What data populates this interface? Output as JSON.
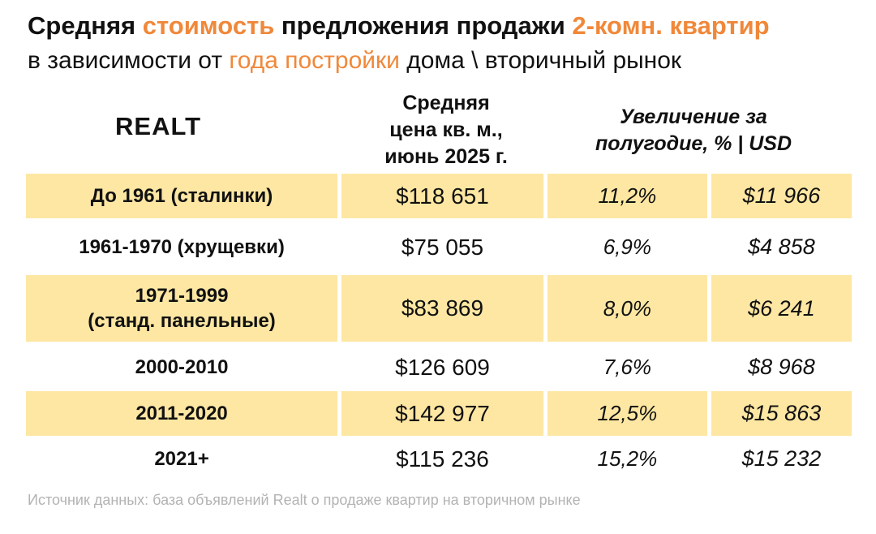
{
  "title": {
    "line1": [
      {
        "text": "Средняя ",
        "accent": false
      },
      {
        "text": "стоимость",
        "accent": true
      },
      {
        "text": " предложения продажи ",
        "accent": false
      },
      {
        "text": "2-комн. квартир",
        "accent": true
      }
    ],
    "line2": [
      {
        "text": "в зависимости от ",
        "accent": false
      },
      {
        "text": "года постройки",
        "accent": true
      },
      {
        "text": " дома \\ вторичный рынок",
        "accent": false
      }
    ]
  },
  "logo": "REALT",
  "columns": {
    "price_lines": [
      "Средняя",
      "цена кв. м.,",
      "июнь 2025 г."
    ],
    "increase_lines": [
      "Увеличение за",
      "полугодие, % | USD"
    ]
  },
  "rows": [
    {
      "period": "До 1961 (сталинки)",
      "price": "$118 651",
      "pct": "11,2%",
      "usd": "$11 966"
    },
    {
      "period": "1961-1970 (хрущевки)",
      "price": "$75 055",
      "pct": "6,9%",
      "usd": "$4 858"
    },
    {
      "period": "1971-1999\n(станд. панельные)",
      "price": "$83 869",
      "pct": "8,0%",
      "usd": "$6 241"
    },
    {
      "period": "2000-2010",
      "price": "$126 609",
      "pct": "7,6%",
      "usd": "$8 968"
    },
    {
      "period": "2011-2020",
      "price": "$142 977",
      "pct": "12,5%",
      "usd": "$15 863"
    },
    {
      "period": "2021+",
      "price": "$115 236",
      "pct": "15,2%",
      "usd": "$15 232"
    }
  ],
  "source": "Источник данных: база объявлений Realt о продаже квартир на вторичном рынке",
  "colors": {
    "accent": "#f0883a",
    "row_highlight": "#fde7a3",
    "source_text": "#b3b3b3"
  }
}
